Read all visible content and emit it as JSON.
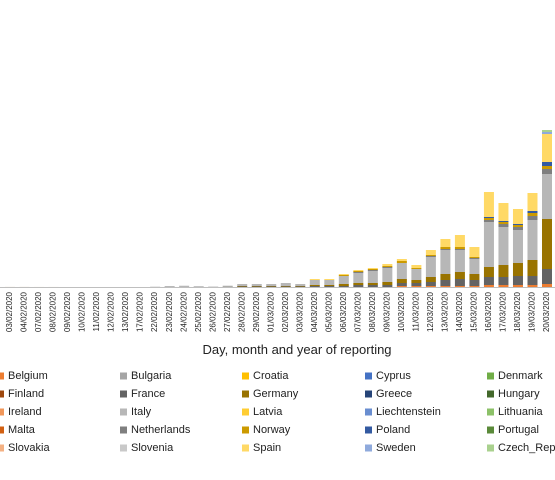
{
  "chart_data": {
    "type": "stacked-bar",
    "x_label": "Day, month and year of reporting",
    "categories": [
      "03/02/2020",
      "04/02/2020",
      "07/02/2020",
      "08/02/2020",
      "09/02/2020",
      "10/02/2020",
      "11/02/2020",
      "12/02/2020",
      "13/02/2020",
      "17/02/2020",
      "22/02/2020",
      "23/02/2020",
      "24/02/2020",
      "25/02/2020",
      "26/02/2020",
      "27/02/2020",
      "28/02/2020",
      "29/02/2020",
      "01/03/2020",
      "02/03/2020",
      "03/03/2020",
      "04/03/2020",
      "05/03/2020",
      "06/03/2020",
      "07/03/2020",
      "08/03/2020",
      "09/03/2020",
      "10/03/2020",
      "11/03/2020",
      "12/03/2020",
      "13/03/2020",
      "14/03/2020",
      "15/03/2020",
      "16/03/2020",
      "17/03/2020",
      "18/03/2020",
      "19/03/2020",
      "20/03/2020"
    ],
    "series": [
      {
        "name": "Belgium",
        "color": "#ed7d31",
        "values": [
          0,
          0,
          0,
          0,
          0,
          0,
          0,
          0,
          0,
          0,
          0,
          0,
          0,
          0,
          0,
          0,
          0,
          0,
          0,
          0,
          0,
          0,
          0,
          0,
          0,
          0,
          0,
          60,
          60,
          60,
          60,
          60,
          60,
          120,
          120,
          120,
          120,
          180
        ]
      },
      {
        "name": "Bulgaria",
        "color": "#a5a5a5",
        "values": [
          0,
          0,
          0,
          0,
          0,
          0,
          0,
          0,
          0,
          0,
          0,
          0,
          0,
          0,
          0,
          0,
          0,
          0,
          0,
          0,
          0,
          0,
          0,
          0,
          0,
          0,
          0,
          0,
          0,
          0,
          0,
          0,
          0,
          0,
          0,
          0,
          0,
          0
        ]
      },
      {
        "name": "Croatia",
        "color": "#ffc000",
        "values": [
          0,
          0,
          0,
          0,
          0,
          0,
          0,
          0,
          0,
          0,
          0,
          0,
          0,
          0,
          0,
          0,
          0,
          0,
          0,
          0,
          0,
          0,
          0,
          0,
          0,
          0,
          0,
          0,
          0,
          0,
          0,
          0,
          0,
          0,
          0,
          0,
          0,
          0
        ]
      },
      {
        "name": "Cyprus",
        "color": "#4472c4",
        "values": [
          0,
          0,
          0,
          0,
          0,
          0,
          0,
          0,
          0,
          0,
          0,
          0,
          0,
          0,
          0,
          0,
          0,
          0,
          0,
          0,
          0,
          0,
          0,
          0,
          0,
          0,
          0,
          0,
          0,
          0,
          0,
          0,
          0,
          0,
          0,
          0,
          0,
          0
        ]
      },
      {
        "name": "Denmark",
        "color": "#70ad47",
        "values": [
          0,
          0,
          0,
          0,
          0,
          0,
          0,
          0,
          0,
          0,
          0,
          0,
          0,
          0,
          0,
          0,
          0,
          0,
          0,
          0,
          0,
          0,
          0,
          0,
          0,
          0,
          0,
          0,
          0,
          0,
          0,
          0,
          0,
          0,
          0,
          0,
          0,
          0
        ]
      },
      {
        "name": "Finland",
        "color": "#9e480e",
        "values": [
          0,
          0,
          0,
          0,
          0,
          0,
          0,
          0,
          0,
          0,
          0,
          0,
          0,
          0,
          0,
          0,
          0,
          0,
          0,
          0,
          0,
          0,
          0,
          0,
          0,
          0,
          0,
          0,
          0,
          0,
          0,
          0,
          0,
          0,
          0,
          0,
          0,
          0
        ]
      },
      {
        "name": "France",
        "color": "#636363",
        "values": [
          0,
          0,
          0,
          0,
          0,
          0,
          0,
          0,
          0,
          0,
          0,
          0,
          0,
          2,
          2,
          18,
          30,
          30,
          30,
          30,
          30,
          60,
          60,
          60,
          120,
          120,
          120,
          180,
          180,
          240,
          360,
          420,
          360,
          480,
          480,
          540,
          540,
          900
        ]
      },
      {
        "name": "Germany",
        "color": "#997300",
        "values": [
          2,
          2,
          1,
          1,
          0,
          0,
          0,
          0,
          0,
          0,
          0,
          0,
          0,
          0,
          1,
          3,
          30,
          30,
          30,
          30,
          30,
          60,
          60,
          120,
          120,
          120,
          180,
          240,
          180,
          300,
          360,
          420,
          360,
          600,
          720,
          780,
          960,
          3000
        ]
      },
      {
        "name": "Greece",
        "color": "#264478",
        "values": [
          0,
          0,
          0,
          0,
          0,
          0,
          0,
          0,
          0,
          0,
          0,
          0,
          0,
          0,
          0,
          0,
          0,
          0,
          0,
          0,
          0,
          0,
          0,
          0,
          0,
          0,
          0,
          0,
          0,
          0,
          0,
          0,
          0,
          0,
          0,
          0,
          0,
          0
        ]
      },
      {
        "name": "Hungary",
        "color": "#43682b",
        "values": [
          0,
          0,
          0,
          0,
          0,
          0,
          0,
          0,
          0,
          0,
          0,
          0,
          0,
          0,
          0,
          0,
          0,
          0,
          0,
          0,
          0,
          0,
          0,
          0,
          0,
          0,
          0,
          0,
          0,
          0,
          0,
          0,
          0,
          0,
          0,
          0,
          0,
          0
        ]
      },
      {
        "name": "Ireland",
        "color": "#f1975a",
        "values": [
          0,
          0,
          0,
          0,
          0,
          0,
          0,
          0,
          0,
          0,
          0,
          0,
          0,
          0,
          0,
          0,
          0,
          0,
          0,
          0,
          0,
          0,
          0,
          0,
          0,
          0,
          0,
          0,
          0,
          0,
          0,
          0,
          0,
          0,
          0,
          0,
          0,
          0
        ]
      },
      {
        "name": "Italy",
        "color": "#b7b7b7",
        "values": [
          0,
          0,
          0,
          0,
          0,
          0,
          0,
          0,
          0,
          0,
          17,
          58,
          76,
          48,
          25,
          57,
          120,
          120,
          120,
          180,
          120,
          300,
          300,
          480,
          600,
          720,
          840,
          960,
          660,
          1200,
          1440,
          1320,
          900,
          2700,
          2280,
          1980,
          2400,
          2700
        ]
      },
      {
        "name": "Latvia",
        "color": "#ffcd33",
        "values": [
          0,
          0,
          0,
          0,
          0,
          0,
          0,
          0,
          0,
          0,
          0,
          0,
          0,
          0,
          0,
          0,
          0,
          0,
          0,
          0,
          0,
          0,
          0,
          0,
          0,
          0,
          0,
          0,
          0,
          0,
          0,
          0,
          0,
          0,
          0,
          0,
          0,
          0
        ]
      },
      {
        "name": "Liechtenstein",
        "color": "#698ed0",
        "values": [
          0,
          0,
          0,
          0,
          0,
          0,
          0,
          0,
          0,
          0,
          0,
          0,
          0,
          0,
          0,
          0,
          0,
          0,
          0,
          0,
          0,
          0,
          0,
          0,
          0,
          0,
          0,
          0,
          0,
          0,
          0,
          0,
          0,
          0,
          0,
          0,
          0,
          0
        ]
      },
      {
        "name": "Lithuania",
        "color": "#8cc168",
        "values": [
          0,
          0,
          0,
          0,
          0,
          0,
          0,
          0,
          0,
          0,
          0,
          0,
          0,
          0,
          0,
          0,
          0,
          0,
          0,
          0,
          0,
          0,
          0,
          0,
          0,
          0,
          0,
          0,
          0,
          0,
          0,
          0,
          0,
          0,
          0,
          0,
          0,
          0
        ]
      },
      {
        "name": "Malta",
        "color": "#d26012",
        "values": [
          0,
          0,
          0,
          0,
          0,
          0,
          0,
          0,
          0,
          0,
          0,
          0,
          0,
          0,
          0,
          0,
          0,
          0,
          0,
          0,
          0,
          0,
          0,
          0,
          0,
          0,
          0,
          0,
          0,
          0,
          0,
          0,
          0,
          0,
          0,
          0,
          0,
          0
        ]
      },
      {
        "name": "Netherlands",
        "color": "#7f7f7f",
        "values": [
          0,
          0,
          0,
          0,
          0,
          0,
          0,
          0,
          0,
          0,
          0,
          0,
          0,
          0,
          0,
          0,
          0,
          0,
          0,
          0,
          0,
          0,
          0,
          0,
          60,
          60,
          60,
          0,
          0,
          60,
          60,
          60,
          60,
          120,
          180,
          180,
          240,
          300
        ]
      },
      {
        "name": "Norway",
        "color": "#cc9a00",
        "values": [
          0,
          0,
          0,
          0,
          0,
          0,
          0,
          0,
          0,
          0,
          0,
          0,
          0,
          0,
          0,
          0,
          0,
          0,
          0,
          0,
          0,
          0,
          0,
          60,
          60,
          60,
          60,
          120,
          60,
          60,
          120,
          120,
          60,
          120,
          120,
          120,
          180,
          180
        ]
      },
      {
        "name": "Poland",
        "color": "#335aa1",
        "values": [
          0,
          0,
          0,
          0,
          0,
          0,
          0,
          0,
          0,
          0,
          0,
          0,
          0,
          0,
          0,
          0,
          0,
          0,
          0,
          0,
          0,
          0,
          0,
          0,
          0,
          0,
          0,
          0,
          0,
          0,
          0,
          0,
          0,
          60,
          60,
          60,
          120,
          240
        ]
      },
      {
        "name": "Portugal",
        "color": "#5a8a39",
        "values": [
          0,
          0,
          0,
          0,
          0,
          0,
          0,
          0,
          0,
          0,
          0,
          0,
          0,
          0,
          0,
          0,
          0,
          0,
          0,
          0,
          0,
          0,
          0,
          0,
          0,
          0,
          0,
          0,
          0,
          0,
          0,
          0,
          0,
          0,
          0,
          0,
          0,
          0
        ]
      },
      {
        "name": "Slovakia",
        "color": "#f4b183",
        "values": [
          0,
          0,
          0,
          0,
          0,
          0,
          0,
          0,
          0,
          0,
          0,
          0,
          0,
          0,
          0,
          0,
          0,
          0,
          0,
          0,
          0,
          0,
          0,
          0,
          0,
          0,
          0,
          0,
          0,
          0,
          0,
          0,
          0,
          0,
          0,
          0,
          0,
          0
        ]
      },
      {
        "name": "Slovenia",
        "color": "#c9c9c9",
        "values": [
          0,
          0,
          0,
          0,
          0,
          0,
          0,
          0,
          0,
          0,
          0,
          0,
          0,
          0,
          0,
          0,
          0,
          0,
          0,
          0,
          0,
          0,
          0,
          0,
          0,
          0,
          0,
          0,
          0,
          0,
          0,
          0,
          0,
          0,
          0,
          0,
          0,
          0
        ]
      },
      {
        "name": "Spain",
        "color": "#ffd966",
        "values": [
          0,
          0,
          0,
          0,
          0,
          0,
          0,
          0,
          0,
          0,
          0,
          0,
          0,
          0,
          0,
          0,
          0,
          0,
          0,
          0,
          0,
          60,
          60,
          60,
          60,
          60,
          120,
          120,
          180,
          300,
          480,
          720,
          600,
          1500,
          1080,
          900,
          1080,
          1680
        ]
      },
      {
        "name": "Sweden",
        "color": "#8faadc",
        "values": [
          0,
          0,
          0,
          0,
          0,
          0,
          0,
          0,
          0,
          0,
          0,
          0,
          0,
          0,
          0,
          0,
          0,
          0,
          0,
          0,
          0,
          0,
          0,
          0,
          0,
          0,
          0,
          0,
          0,
          0,
          0,
          0,
          0,
          0,
          0,
          0,
          0,
          120
        ]
      },
      {
        "name": "Czech_Rep",
        "color": "#a9d18e",
        "values": [
          0,
          0,
          0,
          0,
          0,
          0,
          0,
          0,
          0,
          0,
          0,
          0,
          0,
          0,
          0,
          0,
          0,
          0,
          0,
          0,
          0,
          0,
          0,
          0,
          0,
          0,
          0,
          0,
          0,
          0,
          0,
          0,
          0,
          0,
          0,
          0,
          0,
          120
        ]
      }
    ]
  }
}
